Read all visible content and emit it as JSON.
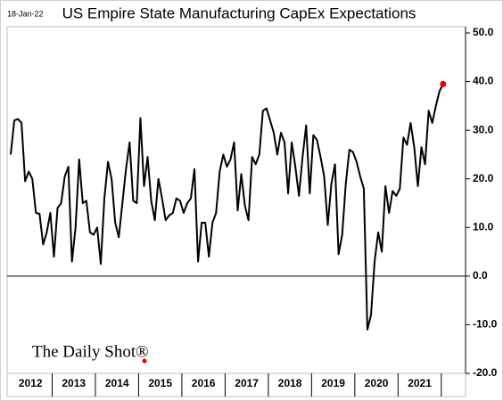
{
  "chart_data": {
    "type": "line",
    "title": "US Empire State Manufacturing CapEx Expectations",
    "date_stamp": "18-Jan-22",
    "watermark": "The Daily Shot®",
    "year_labels": [
      "2012",
      "2013",
      "2014",
      "2015",
      "2016",
      "2017",
      "2018",
      "2019",
      "2020",
      "2021"
    ],
    "values": [
      25,
      32,
      32.3,
      31.5,
      19.5,
      21.5,
      20,
      13,
      12.8,
      6.5,
      9,
      13,
      4,
      14,
      15,
      20.5,
      22.5,
      3,
      10,
      24,
      15,
      15.5,
      9,
      8.5,
      10,
      2.5,
      16,
      23.5,
      20,
      11,
      8,
      15,
      22,
      27.5,
      15.5,
      15,
      32.5,
      18.5,
      24.5,
      15.5,
      11.5,
      20,
      16,
      11.5,
      12.5,
      13,
      16,
      15.5,
      13,
      15,
      16,
      22,
      3,
      11,
      11,
      4,
      11,
      13,
      21.5,
      25,
      22.5,
      24,
      27.5,
      13.5,
      21,
      14.5,
      11.5,
      24.5,
      23,
      25,
      34,
      34.5,
      32,
      29.5,
      25,
      29.5,
      27.5,
      17,
      27.5,
      22.5,
      16.5,
      24.5,
      31,
      17,
      29,
      28,
      24.5,
      20.5,
      10.5,
      19,
      23,
      4.5,
      8.5,
      19,
      26,
      25.5,
      23.5,
      20.5,
      18,
      -11,
      -8,
      3,
      9,
      5,
      18.5,
      13,
      17.5,
      16.5,
      18,
      28.5,
      27,
      31.5,
      26.5,
      18.5,
      26.5,
      23,
      34,
      31.5,
      35,
      38,
      39.5
    ],
    "color": "#000000",
    "last_point_color": "#e00000",
    "ylim": [
      -20,
      50
    ],
    "yticks": [
      {
        "value": -20,
        "label": "-20.0"
      },
      {
        "value": -10,
        "label": "-10.0"
      },
      {
        "value": 0,
        "label": "0.0"
      },
      {
        "value": 10,
        "label": "10.0"
      },
      {
        "value": 20,
        "label": "20.0"
      },
      {
        "value": 30,
        "label": "30.0"
      },
      {
        "value": 40,
        "label": "40.0"
      },
      {
        "value": 50,
        "label": "50.0"
      }
    ],
    "zero_line": true
  }
}
